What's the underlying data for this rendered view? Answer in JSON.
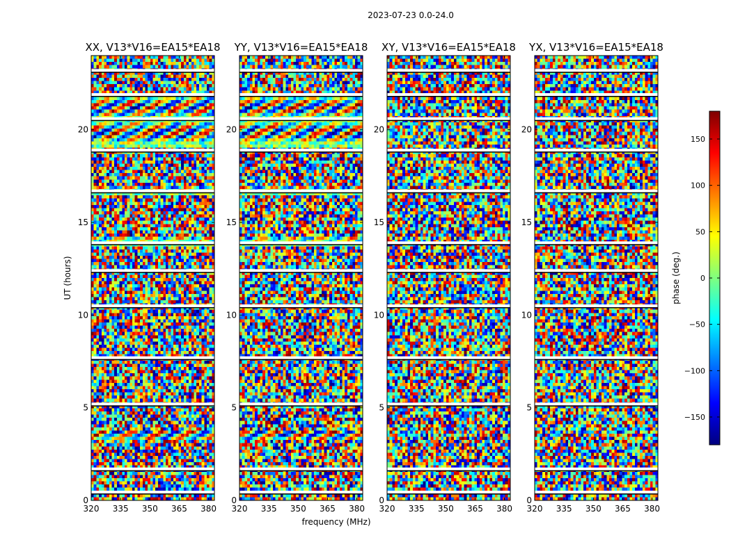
{
  "figure": {
    "suptitle": "2023-07-23 0.0-24.0"
  },
  "chart_data": {
    "type": "heatmap",
    "xlabel": "frequency (MHz)",
    "ylabel": "UT (hours)",
    "xlim": [
      320,
      383
    ],
    "ylim": [
      0,
      24
    ],
    "xticks": [
      320,
      335,
      350,
      365,
      380
    ],
    "yticks": [
      0,
      5,
      10,
      15,
      20
    ],
    "panels": [
      {
        "title": "XX, V13*V16=EA15*EA18",
        "pol": "XX"
      },
      {
        "title": "YY, V13*V16=EA15*EA18",
        "pol": "YY"
      },
      {
        "title": "XY, V13*V16=EA15*EA18",
        "pol": "XY"
      },
      {
        "title": "YX, V13*V16=EA15*EA18",
        "pol": "YX"
      }
    ],
    "value_label": "phase (deg.)",
    "value_range": [
      -180,
      180
    ],
    "colorbar_ticks": [
      150,
      100,
      50,
      0,
      -50,
      -100,
      -150
    ],
    "colormap": [
      "#00007f",
      "#0000ff",
      "#007fff",
      "#00ffff",
      "#7fff7f",
      "#ffff00",
      "#ff7f00",
      "#ff0000",
      "#7f0000"
    ],
    "flagged_color": "#ffffff",
    "gap_color": "#000000",
    "flagged_ut_hours": [
      0.45,
      1.7,
      5.2,
      7.7,
      10.5,
      12.4,
      13.9,
      16.7,
      18.9,
      20.6,
      21.9,
      23.2
    ],
    "coherent_ut_bands": [
      {
        "from": 18.95,
        "to": 20.5,
        "polarizations": [
          "XX",
          "YY"
        ]
      },
      {
        "from": 20.6,
        "to": 21.9,
        "polarizations": [
          "XX",
          "YY"
        ]
      },
      {
        "from": 16.5,
        "to": 16.9,
        "polarizations": [
          "XX",
          "YY"
        ]
      },
      {
        "from": 13.8,
        "to": 14.2,
        "polarizations": [
          "XX",
          "YY"
        ]
      },
      {
        "from": 7.6,
        "to": 7.9,
        "polarizations": [
          "XX",
          "YY"
        ]
      },
      {
        "from": 3.3,
        "to": 3.7,
        "polarizations": [
          "XX",
          "YY"
        ]
      }
    ]
  }
}
